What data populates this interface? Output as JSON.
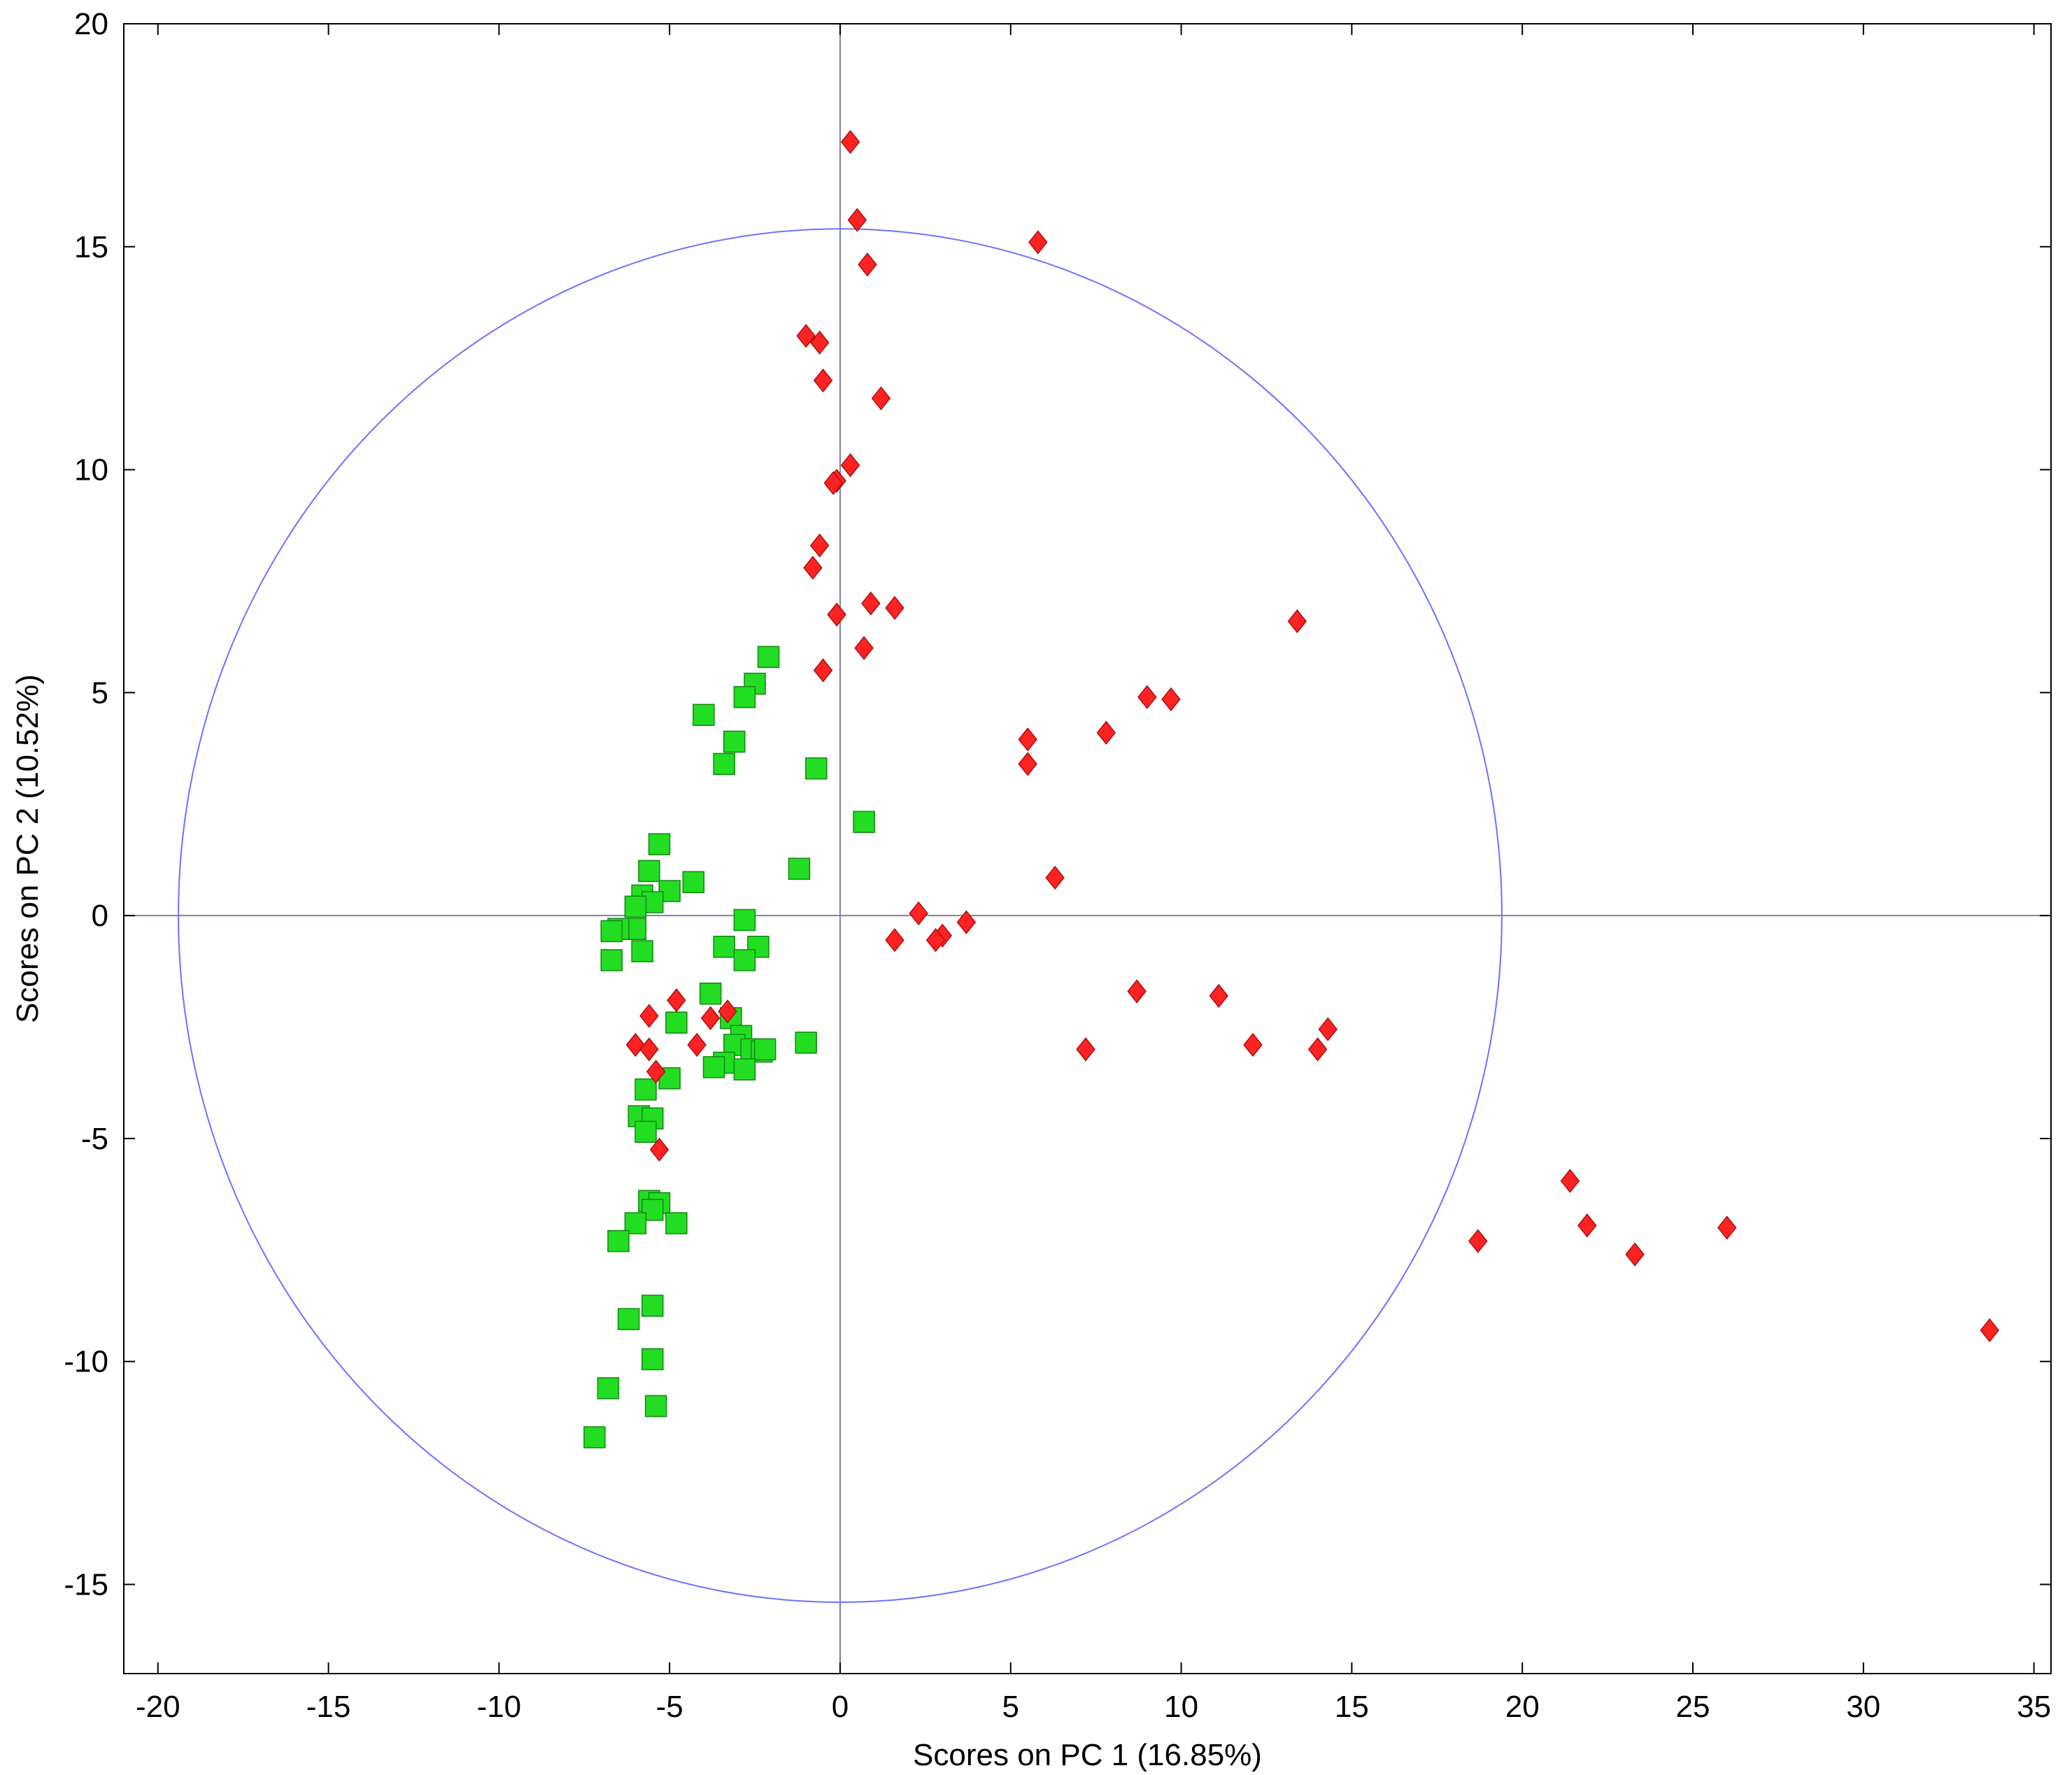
{
  "chart_data": {
    "type": "scatter",
    "title": "",
    "xlabel": "Scores on PC 1 (16.85%)",
    "ylabel": "Scores on PC 2 (10.52%)",
    "xlim": [
      -21,
      35.5
    ],
    "ylim": [
      -17,
      20
    ],
    "xticks": [
      -20,
      -15,
      -10,
      -5,
      0,
      5,
      10,
      15,
      20,
      25,
      30,
      35
    ],
    "yticks": [
      -15,
      -10,
      -5,
      0,
      5,
      10,
      15,
      20
    ],
    "xtick_labels": [
      "-20",
      "-15",
      "-10",
      "-5",
      "0",
      "5",
      "10",
      "15",
      "20",
      "25",
      "30",
      "35"
    ],
    "ytick_labels": [
      "-15",
      "-10",
      "-5",
      "0",
      "5",
      "10",
      "15",
      "20"
    ],
    "grid": false,
    "reference_lines": {
      "x": 0,
      "y": 0,
      "color": "#8080a0"
    },
    "ellipse": {
      "center": [
        0,
        0
      ],
      "rx": 19.4,
      "ry": 15.4,
      "color": "#7070ff"
    },
    "series": [
      {
        "marker": "square",
        "color": "#22dd22",
        "points": [
          [
            -2.1,
            5.8
          ],
          [
            -2.5,
            5.2
          ],
          [
            -2.8,
            4.9
          ],
          [
            -4.0,
            4.5
          ],
          [
            -3.1,
            3.9
          ],
          [
            -3.4,
            3.4
          ],
          [
            -0.7,
            3.3
          ],
          [
            0.7,
            2.1
          ],
          [
            -1.2,
            1.05
          ],
          [
            -5.3,
            1.6
          ],
          [
            -5.6,
            1.0
          ],
          [
            -4.3,
            0.75
          ],
          [
            -5.0,
            0.55
          ],
          [
            -5.8,
            0.45
          ],
          [
            -5.5,
            0.3
          ],
          [
            -6.0,
            0.2
          ],
          [
            -2.8,
            -0.1
          ],
          [
            -6.0,
            -0.3
          ],
          [
            -6.5,
            -0.3
          ],
          [
            -6.7,
            -0.35
          ],
          [
            -3.4,
            -0.7
          ],
          [
            -2.4,
            -0.7
          ],
          [
            -5.8,
            -0.8
          ],
          [
            -6.7,
            -1.0
          ],
          [
            -2.8,
            -1.0
          ],
          [
            -3.8,
            -1.75
          ],
          [
            -3.2,
            -2.3
          ],
          [
            -4.8,
            -2.4
          ],
          [
            -2.9,
            -2.7
          ],
          [
            -3.1,
            -2.9
          ],
          [
            -1.0,
            -2.85
          ],
          [
            -2.6,
            -3.0
          ],
          [
            -2.3,
            -3.05
          ],
          [
            -2.2,
            -3.0
          ],
          [
            -3.4,
            -3.3
          ],
          [
            -3.7,
            -3.4
          ],
          [
            -2.8,
            -3.45
          ],
          [
            -5.0,
            -3.65
          ],
          [
            -5.7,
            -3.9
          ],
          [
            -5.9,
            -4.5
          ],
          [
            -5.5,
            -4.55
          ],
          [
            -5.7,
            -4.85
          ],
          [
            -5.6,
            -6.4
          ],
          [
            -5.3,
            -6.45
          ],
          [
            -5.5,
            -6.6
          ],
          [
            -6.0,
            -6.9
          ],
          [
            -4.8,
            -6.9
          ],
          [
            -6.5,
            -7.3
          ],
          [
            -5.5,
            -8.75
          ],
          [
            -6.2,
            -9.05
          ],
          [
            -5.5,
            -9.95
          ],
          [
            -6.8,
            -10.6
          ],
          [
            -5.4,
            -11.0
          ],
          [
            -7.2,
            -11.7
          ]
        ]
      },
      {
        "marker": "diamond",
        "color": "#ff2222",
        "points": [
          [
            0.3,
            17.35
          ],
          [
            0.5,
            15.6
          ],
          [
            5.8,
            15.1
          ],
          [
            0.8,
            14.6
          ],
          [
            -1.0,
            13.0
          ],
          [
            -0.6,
            12.85
          ],
          [
            -0.5,
            12.0
          ],
          [
            1.2,
            11.6
          ],
          [
            0.3,
            10.1
          ],
          [
            -0.1,
            9.75
          ],
          [
            -0.2,
            9.7
          ],
          [
            -0.6,
            8.3
          ],
          [
            -0.8,
            7.8
          ],
          [
            0.9,
            7.0
          ],
          [
            1.6,
            6.9
          ],
          [
            -0.1,
            6.75
          ],
          [
            13.4,
            6.6
          ],
          [
            0.7,
            6.0
          ],
          [
            -0.5,
            5.5
          ],
          [
            9.0,
            4.9
          ],
          [
            9.7,
            4.85
          ],
          [
            7.8,
            4.1
          ],
          [
            5.5,
            3.95
          ],
          [
            5.5,
            3.4
          ],
          [
            6.3,
            0.85
          ],
          [
            2.3,
            0.05
          ],
          [
            3.7,
            -0.15
          ],
          [
            3.0,
            -0.45
          ],
          [
            2.8,
            -0.55
          ],
          [
            1.6,
            -0.55
          ],
          [
            -4.8,
            -1.9
          ],
          [
            8.7,
            -1.7
          ],
          [
            11.1,
            -1.8
          ],
          [
            -3.3,
            -2.15
          ],
          [
            -5.6,
            -2.25
          ],
          [
            -3.8,
            -2.3
          ],
          [
            -4.2,
            -2.9
          ],
          [
            -6.0,
            -2.9
          ],
          [
            -5.6,
            -3.0
          ],
          [
            14.3,
            -2.55
          ],
          [
            12.1,
            -2.9
          ],
          [
            7.2,
            -3.0
          ],
          [
            14.0,
            -3.0
          ],
          [
            -5.4,
            -3.5
          ],
          [
            -5.3,
            -5.25
          ],
          [
            21.4,
            -5.95
          ],
          [
            21.9,
            -6.95
          ],
          [
            26.0,
            -7.0
          ],
          [
            18.7,
            -7.3
          ],
          [
            23.3,
            -7.6
          ],
          [
            33.7,
            -9.3
          ]
        ]
      }
    ]
  }
}
